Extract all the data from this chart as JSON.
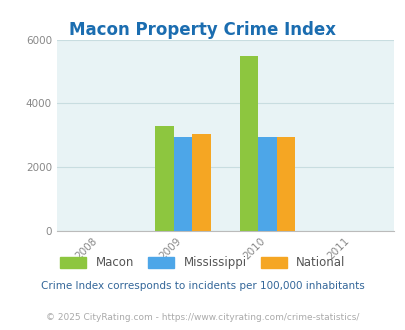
{
  "title": "Macon Property Crime Index",
  "title_color": "#1b6db0",
  "years": [
    2008,
    2009,
    2010,
    2011
  ],
  "bar_years": [
    2009,
    2010
  ],
  "macon": [
    3300,
    5500
  ],
  "mississippi": [
    2950,
    2960
  ],
  "national": [
    3050,
    2950
  ],
  "colors": {
    "macon": "#8dc63f",
    "mississippi": "#4da6e8",
    "national": "#f5a623"
  },
  "ylim": [
    0,
    6000
  ],
  "yticks": [
    0,
    2000,
    4000,
    6000
  ],
  "bg_color": "#e8f3f5",
  "fig_bg": "#ffffff",
  "footnote1": "Crime Index corresponds to incidents per 100,000 inhabitants",
  "footnote2": "© 2025 CityRating.com - https://www.cityrating.com/crime-statistics/",
  "footnote1_color": "#336699",
  "footnote2_color": "#aaaaaa",
  "bar_width": 0.22,
  "grid_color": "#c8dde0"
}
